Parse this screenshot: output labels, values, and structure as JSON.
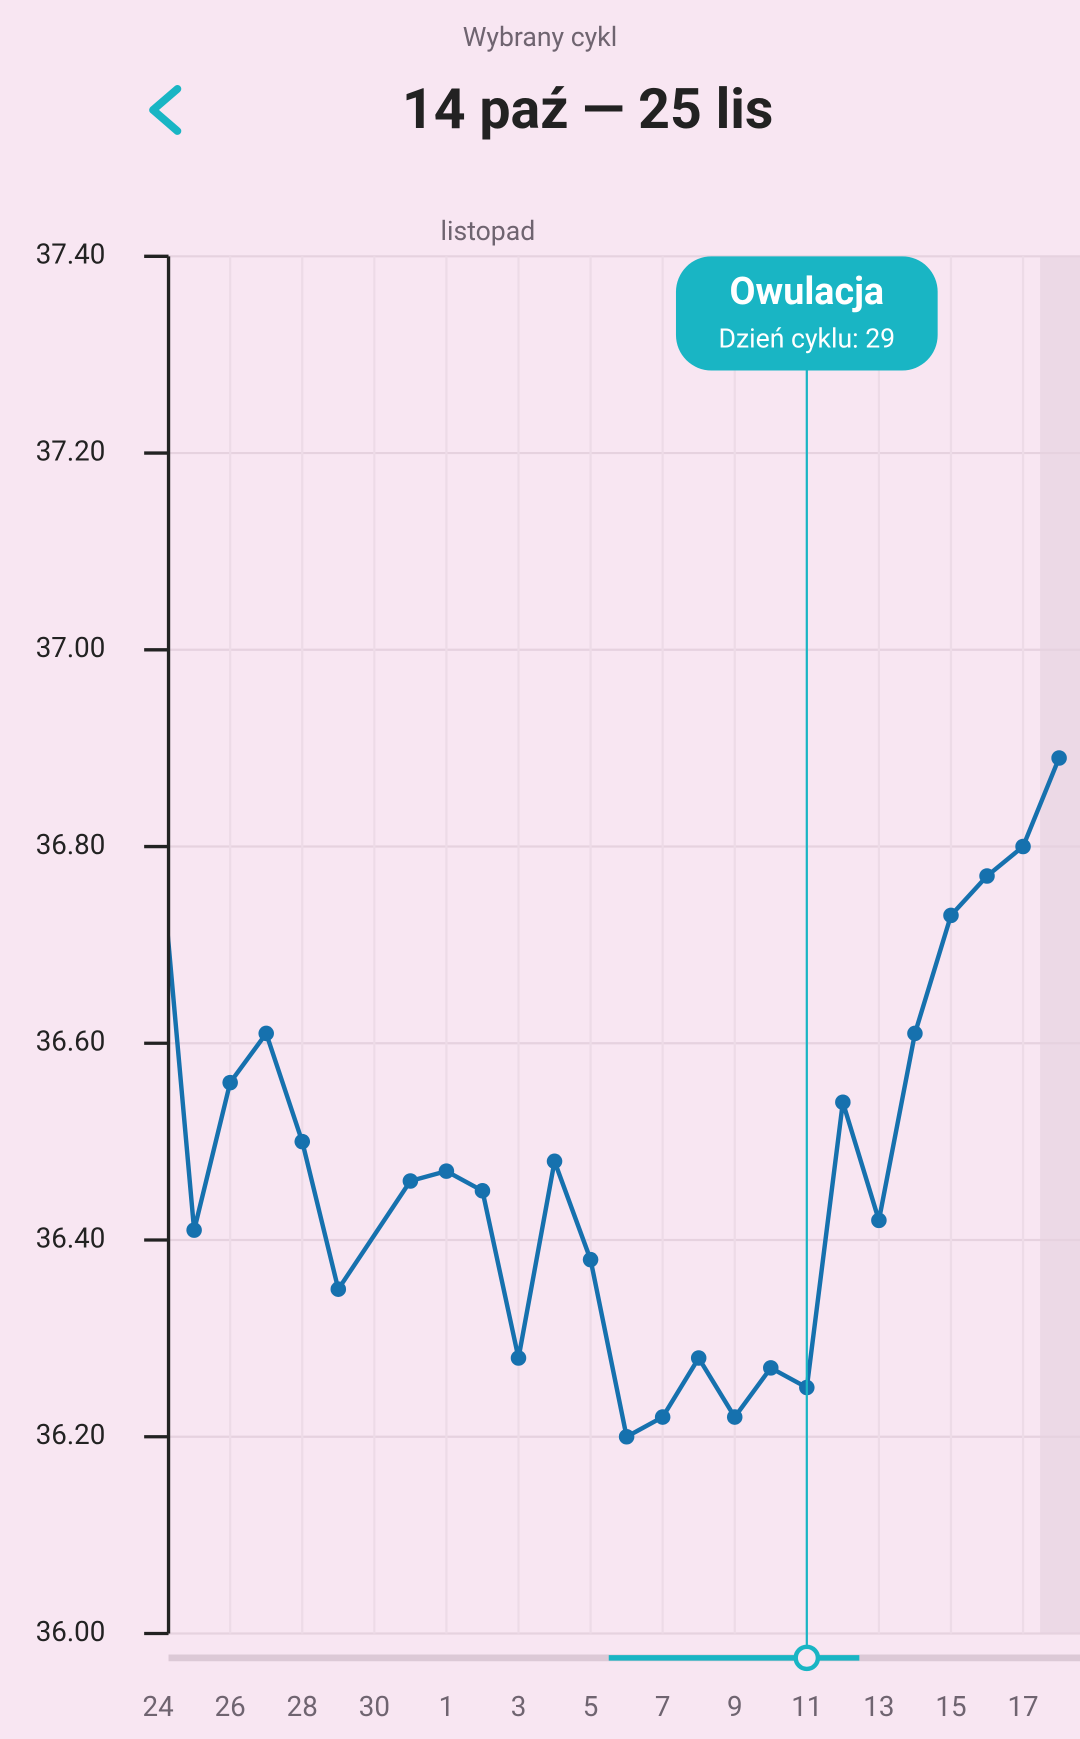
{
  "header": {
    "subtitle": "Wybrany cykl",
    "title": "14 paź — 25 lis"
  },
  "chart_data": {
    "type": "line",
    "month_label": "listopad",
    "color": "#1671ae",
    "grid": true,
    "x": [
      11,
      12,
      13,
      14,
      15,
      16,
      18,
      19,
      20,
      21,
      22,
      23,
      24,
      25,
      26,
      27,
      28,
      29,
      30,
      31,
      32,
      33,
      34,
      35,
      36
    ],
    "values": [
      36.82,
      36.41,
      36.56,
      36.61,
      36.5,
      36.35,
      36.46,
      36.47,
      36.45,
      36.28,
      36.48,
      36.38,
      36.2,
      36.22,
      36.28,
      36.22,
      36.27,
      36.25,
      36.54,
      36.42,
      36.61,
      36.73,
      36.77,
      36.8,
      36.89
    ],
    "xlim": [
      11.29,
      36.58
    ],
    "xticks": [
      {
        "value": 11,
        "label": "24"
      },
      {
        "value": 13,
        "label": "26"
      },
      {
        "value": 15,
        "label": "28"
      },
      {
        "value": 17,
        "label": "30"
      },
      {
        "value": 19,
        "label": "1"
      },
      {
        "value": 21,
        "label": "3"
      },
      {
        "value": 23,
        "label": "5"
      },
      {
        "value": 25,
        "label": "7"
      },
      {
        "value": 27,
        "label": "9"
      },
      {
        "value": 29,
        "label": "11"
      },
      {
        "value": 31,
        "label": "13"
      },
      {
        "value": 33,
        "label": "15"
      },
      {
        "value": 35,
        "label": "17"
      }
    ],
    "ylim": [
      36,
      37.4
    ],
    "yticks": [
      {
        "value": 36,
        "label": "36.00"
      },
      {
        "value": 36.2,
        "label": "36.20"
      },
      {
        "value": 36.4,
        "label": "36.40"
      },
      {
        "value": 36.6,
        "label": "36.60"
      },
      {
        "value": 36.8,
        "label": "36.80"
      },
      {
        "value": 37,
        "label": "37.00"
      },
      {
        "value": 37.2,
        "label": "37.20"
      },
      {
        "value": 37.4,
        "label": "37.40"
      }
    ],
    "annotation": {
      "x": 29,
      "title": "Owulacja",
      "text": "Dzień cyklu: 29",
      "color": "#19b5c4"
    }
  }
}
